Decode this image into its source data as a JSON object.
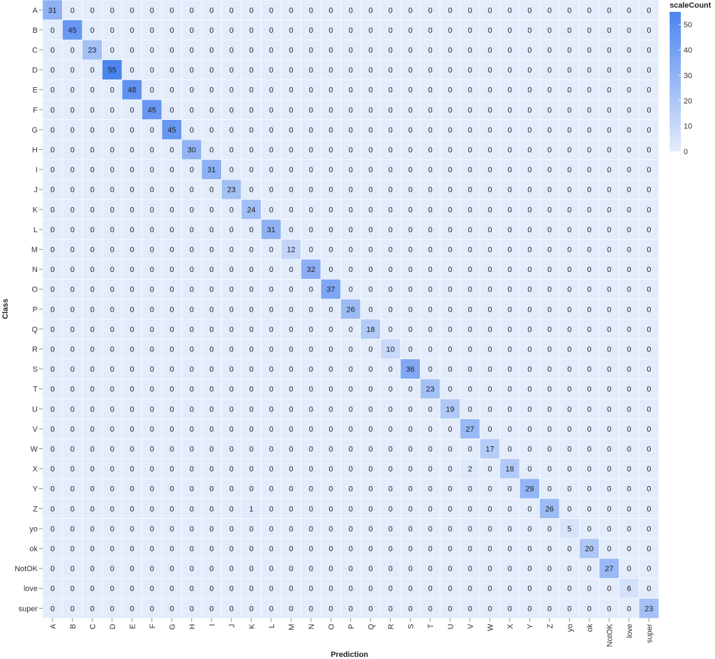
{
  "chart_data": {
    "type": "heatmap",
    "xlabel": "Prediction",
    "ylabel": "Class",
    "x_categories": [
      "A",
      "B",
      "C",
      "D",
      "E",
      "F",
      "G",
      "H",
      "I",
      "J",
      "K",
      "L",
      "M",
      "N",
      "O",
      "P",
      "Q",
      "R",
      "S",
      "T",
      "U",
      "V",
      "W",
      "X",
      "Y",
      "Z",
      "yo",
      "ok",
      "NotOK",
      "love",
      "super"
    ],
    "y_categories": [
      "A",
      "B",
      "C",
      "D",
      "E",
      "F",
      "G",
      "H",
      "I",
      "J",
      "K",
      "L",
      "M",
      "N",
      "O",
      "P",
      "Q",
      "R",
      "S",
      "T",
      "U",
      "V",
      "W",
      "X",
      "Y",
      "Z",
      "yo",
      "ok",
      "NotOK",
      "love",
      "super"
    ],
    "diagonal": [
      31,
      45,
      23,
      55,
      48,
      45,
      45,
      30,
      31,
      23,
      24,
      31,
      12,
      32,
      37,
      26,
      18,
      10,
      36,
      23,
      19,
      27,
      17,
      18,
      29,
      26,
      5,
      20,
      27,
      6,
      23
    ],
    "off_diagonal": [
      {
        "row": "X",
        "col": "V",
        "value": 2
      },
      {
        "row": "Z",
        "col": "K",
        "value": 1
      }
    ],
    "default_value": 0,
    "legend": {
      "title": "scaleCount",
      "ticks": [
        0,
        10,
        20,
        30,
        40,
        50
      ],
      "range": [
        0,
        55
      ],
      "color_low": "#e3ecfb",
      "color_high": "#4c84f0",
      "placement": "top-right"
    },
    "grid": true
  }
}
